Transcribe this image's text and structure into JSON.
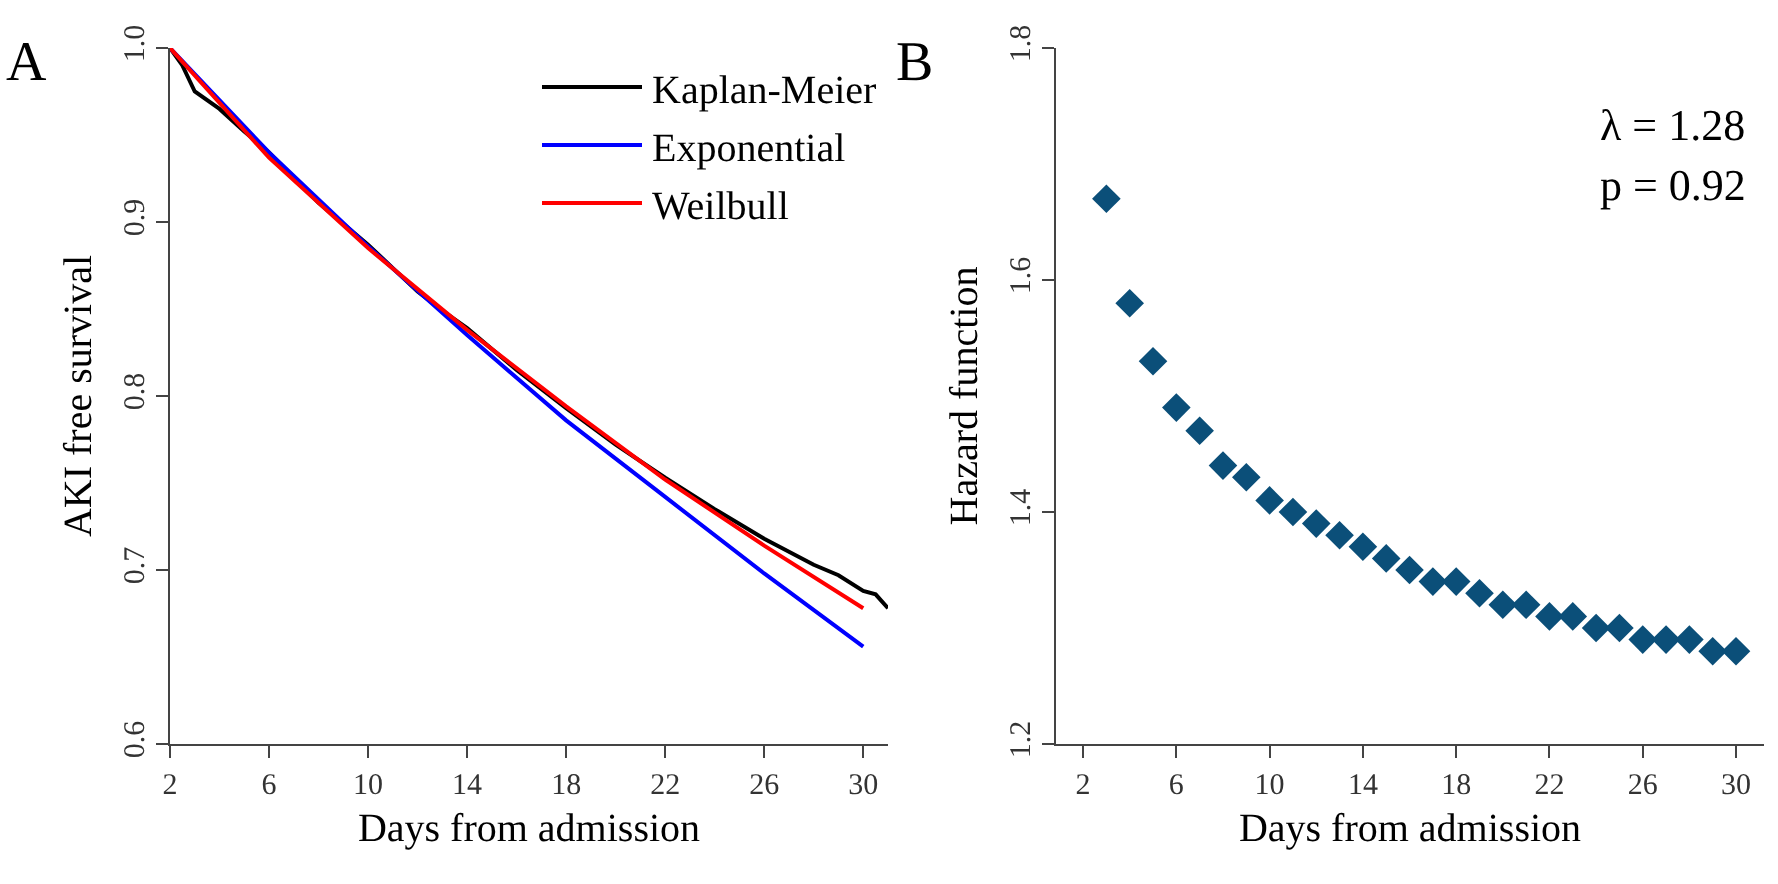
{
  "chart_data": [
    {
      "type": "line",
      "xlabel": "Days from admission",
      "ylabel": "AKI free survival",
      "annotations": [
        "A"
      ],
      "xlim": [
        2,
        31
      ],
      "ylim": [
        0.6,
        1.0
      ],
      "xticks": [
        2,
        6,
        10,
        14,
        18,
        22,
        26,
        30
      ],
      "yticks": [
        0.6,
        0.7,
        0.8,
        0.9,
        {
          "value": 1.0,
          "label": "1.0"
        }
      ],
      "grid": false,
      "legend": "top right",
      "marker": "none",
      "line_style": "solid",
      "series": [
        {
          "name": "Kaplan-Meier",
          "color": "#000000",
          "x": [
            2,
            2.5,
            3,
            4,
            5,
            6,
            8,
            10,
            12,
            13,
            14,
            16,
            18,
            20,
            22,
            24,
            26,
            28,
            29,
            30,
            30.5,
            31
          ],
          "values": [
            1.0,
            0.99,
            0.975,
            0.965,
            0.952,
            0.94,
            0.911,
            0.887,
            0.86,
            0.849,
            0.839,
            0.815,
            0.793,
            0.772,
            0.753,
            0.735,
            0.718,
            0.703,
            0.697,
            0.688,
            0.686,
            0.678
          ]
        },
        {
          "name": "Exponential",
          "color": "#0000ff",
          "x": [
            2,
            6,
            10,
            14,
            18,
            22,
            26,
            30
          ],
          "values": [
            1.0,
            0.94,
            0.886,
            0.835,
            0.786,
            0.742,
            0.698,
            0.656
          ]
        },
        {
          "name": "Weilbull",
          "color": "#ff0000",
          "x": [
            2,
            6,
            10,
            14,
            18,
            22,
            26,
            30
          ],
          "values": [
            1.0,
            0.937,
            0.885,
            0.838,
            0.794,
            0.752,
            0.714,
            0.678
          ]
        }
      ]
    },
    {
      "type": "scatter",
      "xlabel": "Days from admission",
      "ylabel": "Hazard function",
      "annotations": [
        "B",
        "λ = 1.28",
        "p = 0.92"
      ],
      "xlim": [
        0.84,
        31.2
      ],
      "ylim": [
        1.2,
        1.8
      ],
      "xticks": [
        2,
        6,
        10,
        14,
        18,
        22,
        26,
        30
      ],
      "yticks": [
        1.2,
        1.4,
        1.6,
        1.8
      ],
      "grid": false,
      "legend": false,
      "marker": "diamond",
      "series": [
        {
          "color": "#0b4f79",
          "x": [
            3,
            4,
            5,
            6,
            7,
            8,
            9,
            10,
            11,
            12,
            13,
            14,
            15,
            16,
            17,
            18,
            19,
            20,
            21,
            22,
            23,
            24,
            25,
            26,
            27,
            28,
            29,
            30
          ],
          "values": [
            1.67,
            1.58,
            1.53,
            1.49,
            1.47,
            1.44,
            1.43,
            1.41,
            1.4,
            1.39,
            1.38,
            1.37,
            1.36,
            1.35,
            1.34,
            1.34,
            1.33,
            1.32,
            1.32,
            1.31,
            1.31,
            1.3,
            1.3,
            1.29,
            1.29,
            1.29,
            1.28,
            1.28
          ]
        }
      ]
    }
  ]
}
